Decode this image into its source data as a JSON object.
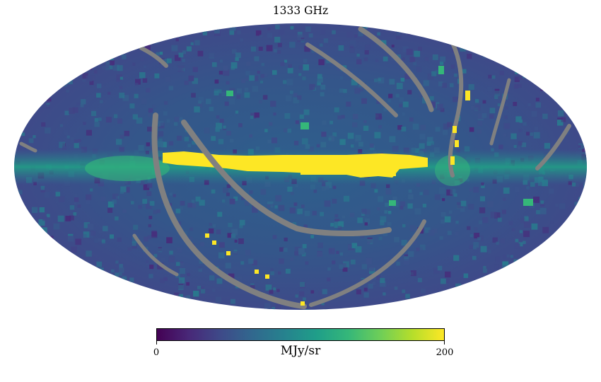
{
  "chart_data": {
    "type": "heatmap",
    "projection": "mollweide",
    "title": "1333 GHz",
    "colormap": "viridis",
    "colorbar": {
      "min": 0,
      "max": 200,
      "tick_labels": [
        "0",
        "200"
      ],
      "unit_label": "MJy/sr",
      "colors": [
        "#440154",
        "#482878",
        "#3e4a89",
        "#31688e",
        "#26828e",
        "#1f9e89",
        "#35b779",
        "#6ece58",
        "#b5de2b",
        "#fde725"
      ]
    },
    "background_level": 55,
    "masked_color": "#808080",
    "features": [
      {
        "name": "galactic-plane",
        "description": "bright saturated band along the equator",
        "level": 200
      },
      {
        "name": "masked-arcs",
        "description": "grey arcs of missing pixels",
        "level": null
      }
    ]
  }
}
